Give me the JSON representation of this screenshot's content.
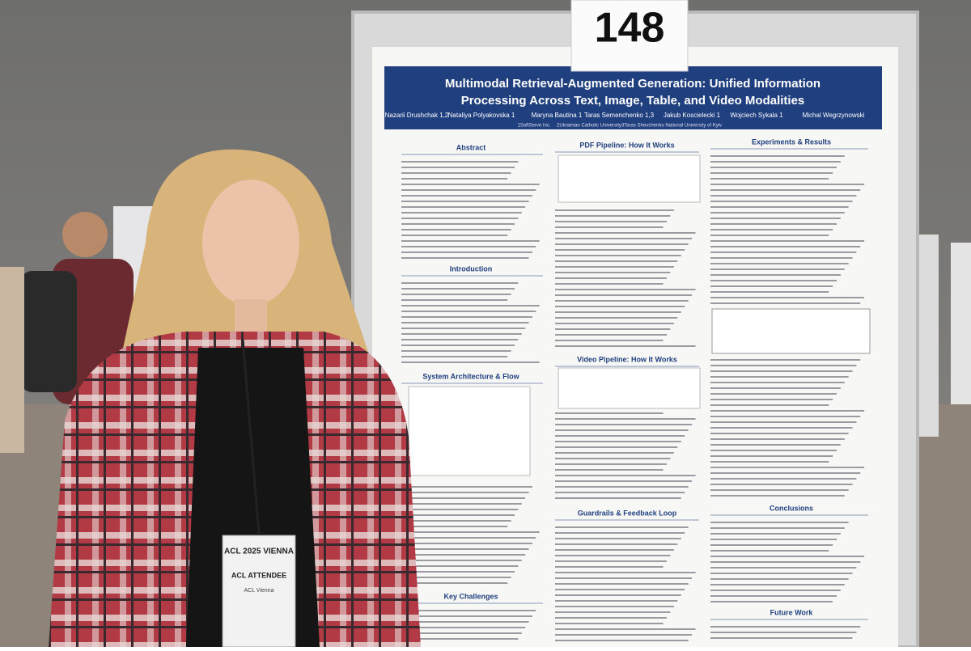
{
  "sign": {
    "number": "148"
  },
  "poster": {
    "title_lines": [
      "Multimodal Retrieval-Augmented Generation: Unified Information",
      "Processing Across Text, Image, Table, and Video Modalities"
    ],
    "authors": [
      "Nazarii Drushchak 1,2",
      "Nataliya Polyakovska 1",
      "Maryna Bautina 1",
      "Taras Semenchenko 1,3",
      "Jakub Koscielecki 1",
      "Wojciech Sykala 1",
      "Michal Wegrzynowski"
    ],
    "affiliations": [
      "1SoftServe Inc.",
      "2Ukrainian Catholic University",
      "3Taras Shevchenko National University of Kyiv"
    ],
    "left_sections": [
      "Abstract",
      "Introduction",
      "System Architecture & Flow",
      "Key Challenges"
    ],
    "middle_sections": [
      "PDF Pipeline: How It Works",
      "Video Pipeline: How It Works",
      "Guardrails & Feedback Loop"
    ],
    "right_sections": [
      "Experiments & Results",
      "Conclusions",
      "Future Work"
    ]
  },
  "badge": {
    "event": "ACL 2025 VIENNA",
    "role": "ACL ATTENDEE",
    "org": "ACL Vienna"
  }
}
